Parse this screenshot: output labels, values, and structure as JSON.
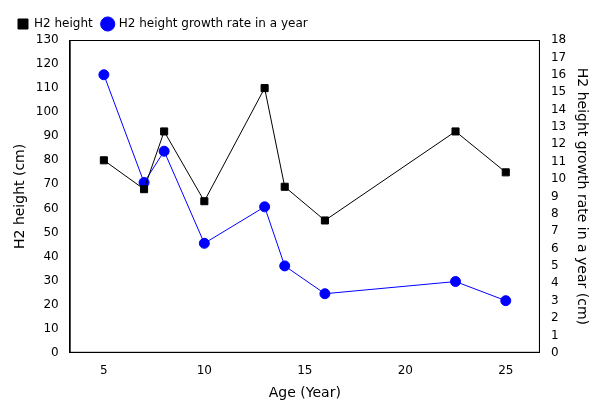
{
  "chart_data": {
    "type": "line",
    "x_label": "Age (Year)",
    "y_label": "H2 height (cm)",
    "y2_label": "H2 height growth rate in a year (cm)",
    "x": [
      5,
      7,
      8,
      10,
      13,
      14,
      16,
      22.5,
      25
    ],
    "series": [
      {
        "name": "H2 height",
        "color": "#000000",
        "marker": "square",
        "line_style": "solid",
        "values": [
          80,
          68,
          92,
          63,
          110,
          69,
          55,
          92,
          75
        ]
      },
      {
        "name": "H2 height growth rate in a year",
        "color": "#0000ff",
        "marker": "circle",
        "line_style": "solid",
        "axis": "y2",
        "values": [
          16,
          9.8,
          11.6,
          6.3,
          8.4,
          5,
          3.4,
          4.1,
          3.0
        ]
      }
    ],
    "xlim": [
      3.3,
      26.7
    ],
    "xticks": [
      5,
      10,
      15,
      20,
      25
    ],
    "ylim": [
      0,
      130
    ],
    "yticks": [
      0,
      10,
      20,
      30,
      40,
      50,
      60,
      70,
      80,
      90,
      100,
      110,
      120,
      130
    ],
    "y2lim": [
      0,
      18
    ],
    "y2ticks": [
      0,
      1,
      2,
      3,
      4,
      5,
      6,
      7,
      8,
      9,
      10,
      11,
      12,
      13,
      14,
      15,
      16,
      17,
      18
    ],
    "grid": false,
    "legend": "upper left"
  }
}
